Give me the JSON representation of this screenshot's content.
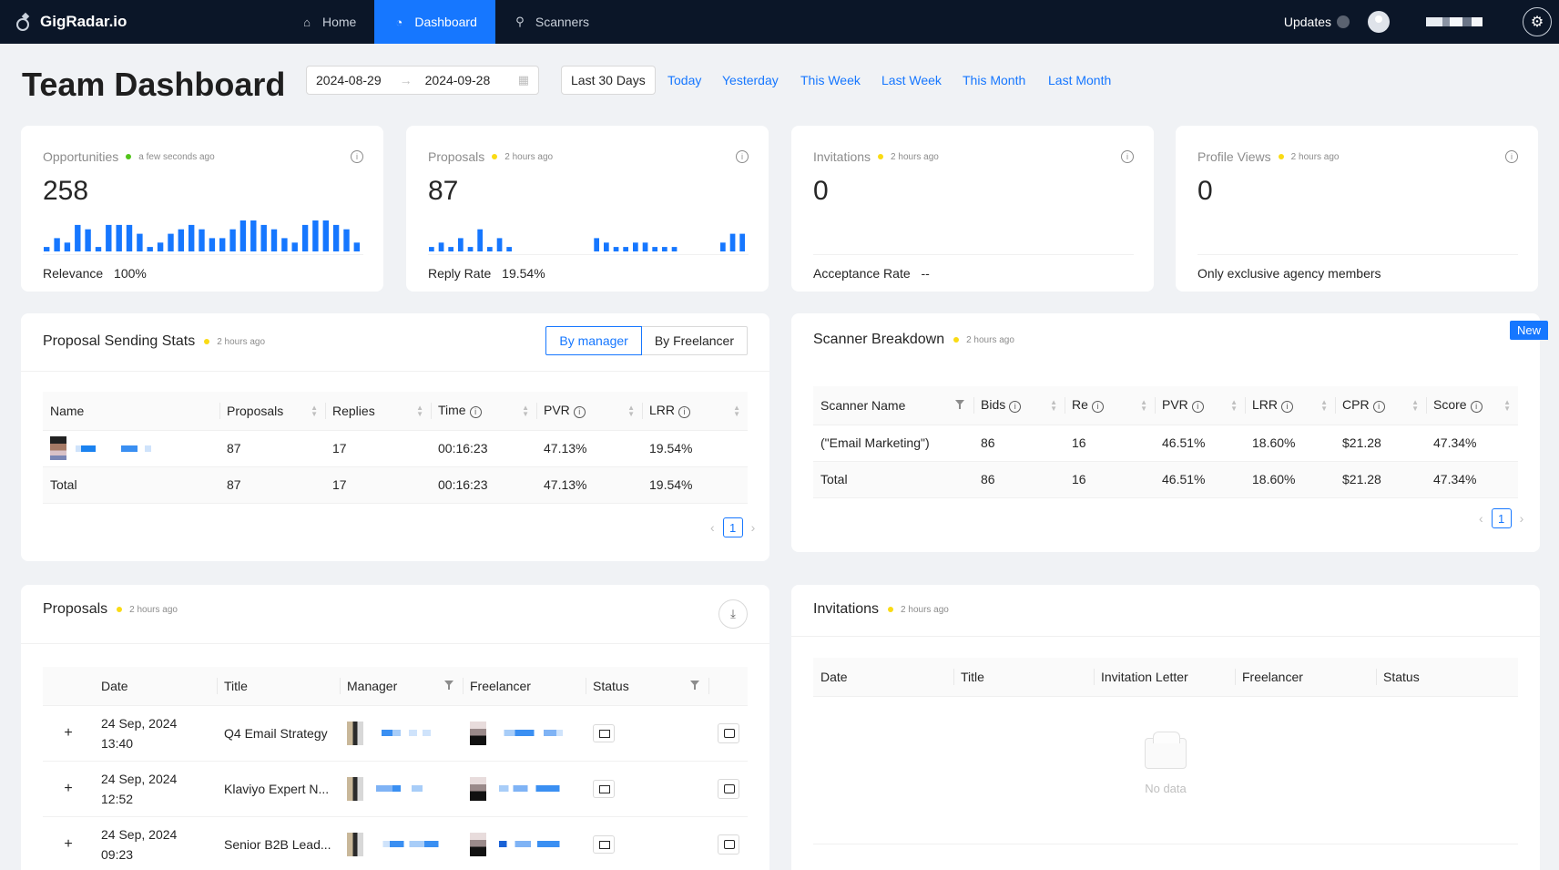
{
  "nav": {
    "brand": "GigRadar.io",
    "items": [
      {
        "label": "Home",
        "icon": "home-icon"
      },
      {
        "label": "Dashboard",
        "icon": "dashboard-icon"
      },
      {
        "label": "Scanners",
        "icon": "search-icon"
      }
    ],
    "updates_label": "Updates"
  },
  "header": {
    "title": "Team Dashboard",
    "date_start": "2024-08-29",
    "date_end": "2024-09-28",
    "presets": [
      "Last 30 Days",
      "Today",
      "Yesterday",
      "This Week",
      "Last Week",
      "This Month",
      "Last Month"
    ],
    "selected_preset": "Last 30 Days"
  },
  "stats": [
    {
      "title": "Opportunities",
      "ago": "a few seconds ago",
      "dot_color": "#52c41a",
      "value": "258",
      "foot_label": "Relevance",
      "foot_value": "100%",
      "spark": [
        1,
        3,
        2,
        6,
        5,
        1,
        6,
        6,
        6,
        4,
        1,
        2,
        4,
        5,
        6,
        5,
        3,
        3,
        5,
        7,
        7,
        6,
        5,
        3,
        2,
        6,
        7,
        7,
        6,
        5,
        2
      ]
    },
    {
      "title": "Proposals",
      "ago": "2 hours ago",
      "dot_color": "#fadb14",
      "value": "87",
      "foot_label": "Reply Rate",
      "foot_value": "19.54%",
      "spark": [
        1,
        2,
        1,
        3,
        1,
        5,
        1,
        3,
        1,
        0,
        0,
        0,
        0,
        0,
        0,
        0,
        0,
        3,
        2,
        1,
        1,
        2,
        2,
        1,
        1,
        1,
        0,
        0,
        0,
        0,
        2,
        4,
        4
      ]
    },
    {
      "title": "Invitations",
      "ago": "2 hours ago",
      "dot_color": "#fadb14",
      "value": "0",
      "foot_label": "Acceptance Rate",
      "foot_value": "--",
      "spark": []
    },
    {
      "title": "Profile Views",
      "ago": "2 hours ago",
      "dot_color": "#fadb14",
      "value": "0",
      "foot_label": "",
      "foot_value": "Only exclusive agency members",
      "spark": []
    }
  ],
  "proposal_stats": {
    "title": "Proposal Sending Stats",
    "ago": "2 hours ago",
    "toggle": [
      "By manager",
      "By Freelancer"
    ],
    "columns": [
      "Name",
      "Proposals",
      "Replies",
      "Time",
      "PVR",
      "LRR"
    ],
    "rows": [
      {
        "proposals": "87",
        "replies": "17",
        "time": "00:16:23",
        "pvr": "47.13%",
        "lrr": "19.54%"
      }
    ],
    "total": {
      "label": "Total",
      "proposals": "87",
      "replies": "17",
      "time": "00:16:23",
      "pvr": "47.13%",
      "lrr": "19.54%"
    },
    "page": "1"
  },
  "scanner_breakdown": {
    "title": "Scanner Breakdown",
    "ago": "2 hours ago",
    "badge": "New",
    "columns": [
      "Scanner Name",
      "Bids",
      "Re",
      "PVR",
      "LRR",
      "CPR",
      "Score"
    ],
    "rows": [
      {
        "name": "(\"Email Marketing\")",
        "bids": "86",
        "re": "16",
        "pvr": "46.51%",
        "lrr": "18.60%",
        "cpr": "$21.28",
        "score": "47.34%"
      }
    ],
    "total": {
      "label": "Total",
      "bids": "86",
      "re": "16",
      "pvr": "46.51%",
      "lrr": "18.60%",
      "cpr": "$21.28",
      "score": "47.34%"
    },
    "page": "1"
  },
  "proposals": {
    "title": "Proposals",
    "ago": "2 hours ago",
    "columns": [
      "Date",
      "Title",
      "Manager",
      "Freelancer",
      "Status"
    ],
    "rows": [
      {
        "date": "24 Sep, 2024",
        "time": "13:40",
        "title": "Q4 Email Strategy"
      },
      {
        "date": "24 Sep, 2024",
        "time": "12:52",
        "title": "Klaviyo Expert N..."
      },
      {
        "date": "24 Sep, 2024",
        "time": "09:23",
        "title": "Senior B2B Lead..."
      }
    ]
  },
  "invitations": {
    "title": "Invitations",
    "ago": "2 hours ago",
    "columns": [
      "Date",
      "Title",
      "Invitation Letter",
      "Freelancer",
      "Status"
    ],
    "empty_text": "No data"
  },
  "colors": {
    "accent": "#1677ff",
    "nav_bg": "#0b1628",
    "dot_yellow": "#fadb14",
    "dot_green": "#52c41a"
  }
}
